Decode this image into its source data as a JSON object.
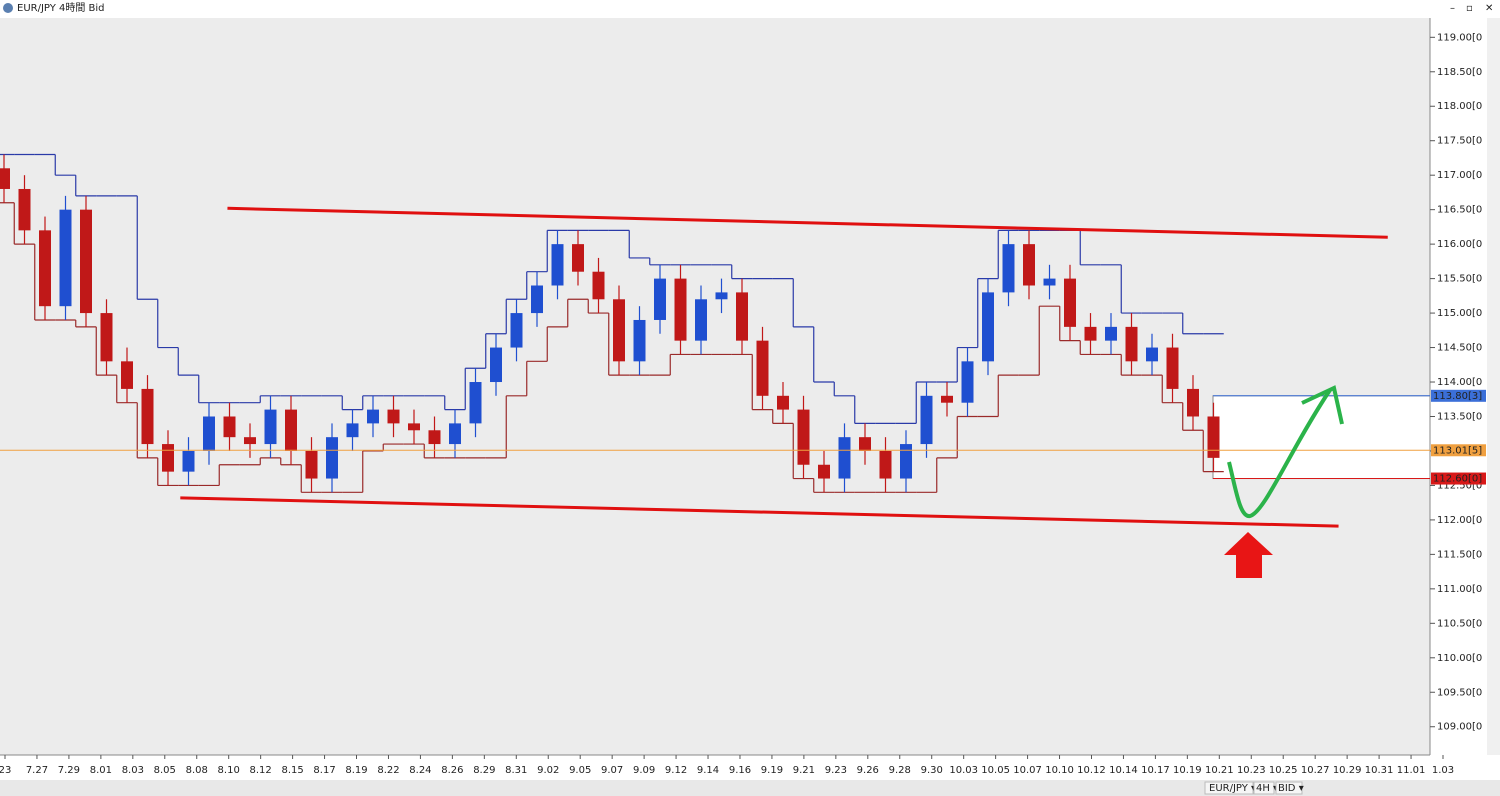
{
  "window": {
    "title": "EUR/JPY 4時間 Bid",
    "toolbar": [
      "EUR/JPY ▾",
      "4H ▾",
      "BID ▾"
    ]
  },
  "chart_data": {
    "type": "candlestick",
    "categories": [
      "23",
      "7.27",
      "7.29",
      "8.01",
      "8.03",
      "8.05",
      "8.08",
      "8.10",
      "8.12",
      "8.15",
      "8.17",
      "8.19",
      "8.22",
      "8.24",
      "8.26",
      "8.29",
      "8.31",
      "9.02",
      "9.05",
      "9.07",
      "9.09",
      "9.12",
      "9.14",
      "9.16",
      "9.19",
      "9.21",
      "9.23",
      "9.26",
      "9.28",
      "9.30",
      "10.03",
      "10.05",
      "10.07",
      "10.10",
      "10.12",
      "10.14",
      "10.17",
      "10.19",
      "10.21",
      "10.23",
      "10.25",
      "10.27",
      "10.29",
      "10.31",
      "11.01",
      "1.03"
    ],
    "up_color": "#1f4fd0",
    "down_color": "#c01818",
    "candles": [
      [
        117.1,
        117.3,
        116.6,
        116.8
      ],
      [
        116.8,
        117.0,
        116.0,
        116.2
      ],
      [
        116.2,
        116.4,
        114.9,
        115.1
      ],
      [
        115.1,
        116.7,
        114.9,
        116.5
      ],
      [
        116.5,
        116.7,
        114.8,
        115.0
      ],
      [
        115.0,
        115.2,
        114.1,
        114.3
      ],
      [
        114.3,
        114.5,
        113.7,
        113.9
      ],
      [
        113.9,
        114.1,
        112.9,
        113.1
      ],
      [
        113.1,
        113.3,
        112.5,
        112.7
      ],
      [
        112.7,
        113.2,
        112.5,
        113.0
      ],
      [
        113.0,
        113.7,
        112.8,
        113.5
      ],
      [
        113.5,
        113.7,
        113.0,
        113.2
      ],
      [
        113.2,
        113.4,
        112.9,
        113.1
      ],
      [
        113.1,
        113.8,
        112.9,
        113.6
      ],
      [
        113.6,
        113.8,
        112.8,
        113.0
      ],
      [
        113.0,
        113.2,
        112.4,
        112.6
      ],
      [
        112.6,
        113.4,
        112.4,
        113.2
      ],
      [
        113.2,
        113.6,
        113.0,
        113.4
      ],
      [
        113.4,
        113.8,
        113.2,
        113.6
      ],
      [
        113.6,
        113.8,
        113.2,
        113.4
      ],
      [
        113.4,
        113.6,
        113.1,
        113.3
      ],
      [
        113.3,
        113.5,
        112.9,
        113.1
      ],
      [
        113.1,
        113.6,
        112.9,
        113.4
      ],
      [
        113.4,
        114.2,
        113.2,
        114.0
      ],
      [
        114.0,
        114.7,
        113.8,
        114.5
      ],
      [
        114.5,
        115.2,
        114.3,
        115.0
      ],
      [
        115.0,
        115.6,
        114.8,
        115.4
      ],
      [
        115.4,
        116.2,
        115.2,
        116.0
      ],
      [
        116.0,
        116.2,
        115.4,
        115.6
      ],
      [
        115.6,
        115.8,
        115.0,
        115.2
      ],
      [
        115.2,
        115.4,
        114.1,
        114.3
      ],
      [
        114.3,
        115.1,
        114.1,
        114.9
      ],
      [
        114.9,
        115.7,
        114.7,
        115.5
      ],
      [
        115.5,
        115.7,
        114.4,
        114.6
      ],
      [
        114.6,
        115.4,
        114.4,
        115.2
      ],
      [
        115.2,
        115.5,
        115.0,
        115.3
      ],
      [
        115.3,
        115.5,
        114.4,
        114.6
      ],
      [
        114.6,
        114.8,
        113.6,
        113.8
      ],
      [
        113.8,
        114.0,
        113.4,
        113.6
      ],
      [
        113.6,
        113.8,
        112.6,
        112.8
      ],
      [
        112.8,
        113.0,
        112.4,
        112.6
      ],
      [
        112.6,
        113.4,
        112.4,
        113.2
      ],
      [
        113.2,
        113.4,
        112.8,
        113.0
      ],
      [
        113.0,
        113.2,
        112.4,
        112.6
      ],
      [
        112.6,
        113.3,
        112.4,
        113.1
      ],
      [
        113.1,
        114.0,
        112.9,
        113.8
      ],
      [
        113.8,
        114.0,
        113.5,
        113.7
      ],
      [
        113.7,
        114.5,
        113.5,
        114.3
      ],
      [
        114.3,
        115.5,
        114.1,
        115.3
      ],
      [
        115.3,
        116.2,
        115.1,
        116.0
      ],
      [
        116.0,
        116.2,
        115.2,
        115.4
      ],
      [
        115.4,
        115.7,
        115.2,
        115.5
      ],
      [
        115.5,
        115.7,
        114.6,
        114.8
      ],
      [
        114.8,
        115.0,
        114.4,
        114.6
      ],
      [
        114.6,
        115.0,
        114.4,
        114.8
      ],
      [
        114.8,
        115.0,
        114.1,
        114.3
      ],
      [
        114.3,
        114.7,
        114.1,
        114.5
      ],
      [
        114.5,
        114.7,
        113.7,
        113.9
      ],
      [
        113.9,
        114.1,
        113.3,
        113.5
      ],
      [
        113.5,
        113.7,
        112.7,
        112.9
      ]
    ],
    "channel": {
      "upper_color": "#2a3aa8",
      "lower_color": "#9a2a2a",
      "upper": [
        117.3,
        117.3,
        117.3,
        117.0,
        116.7,
        116.7,
        116.7,
        115.2,
        114.5,
        114.1,
        113.7,
        113.7,
        113.7,
        113.8,
        113.8,
        113.8,
        113.8,
        113.6,
        113.8,
        113.8,
        113.8,
        113.8,
        113.6,
        114.2,
        114.7,
        115.2,
        115.6,
        116.2,
        116.2,
        116.2,
        116.2,
        115.8,
        115.7,
        115.7,
        115.7,
        115.7,
        115.5,
        115.5,
        115.5,
        114.8,
        114.0,
        113.8,
        113.4,
        113.4,
        113.4,
        114.0,
        114.0,
        114.5,
        115.5,
        116.2,
        116.2,
        116.2,
        116.2,
        115.7,
        115.7,
        115.0,
        115.0,
        115.0,
        114.7,
        114.7
      ],
      "lower": [
        116.6,
        116.0,
        114.9,
        114.9,
        114.8,
        114.1,
        113.7,
        112.9,
        112.5,
        112.5,
        112.5,
        112.8,
        112.8,
        112.9,
        112.8,
        112.4,
        112.4,
        112.4,
        113.0,
        113.1,
        113.1,
        112.9,
        112.9,
        112.9,
        112.9,
        113.8,
        114.3,
        114.8,
        115.2,
        115.0,
        114.1,
        114.1,
        114.1,
        114.4,
        114.4,
        114.4,
        114.4,
        113.6,
        113.4,
        112.6,
        112.4,
        112.4,
        112.4,
        112.4,
        112.4,
        112.4,
        112.9,
        113.5,
        113.5,
        114.1,
        114.1,
        115.1,
        114.6,
        114.4,
        114.4,
        114.1,
        114.1,
        113.7,
        113.3,
        112.7
      ]
    },
    "trendlines": [
      {
        "x": [
          10.9,
          67.5
        ],
        "y": [
          116.52,
          116.1
        ],
        "color": "#e01010"
      },
      {
        "x": [
          8.6,
          65.1
        ],
        "y": [
          112.32,
          111.91
        ],
        "color": "#e01010"
      }
    ],
    "price_lines": [
      {
        "value": 113.8,
        "label": "113.80[3]",
        "color": "#3b6fd8"
      },
      {
        "value": 113.01,
        "label": "113.01[5]",
        "color": "#f0a040"
      },
      {
        "value": 112.6,
        "label": "112.60[0]",
        "color": "#d81818"
      }
    ],
    "ylim": [
      108.59,
      119.28
    ],
    "yticks": [
      {
        "value": 109,
        "label": "109.00[0"
      },
      {
        "value": 109.5,
        "label": "109.50[0"
      },
      {
        "value": 110,
        "label": "110.00[0"
      },
      {
        "value": 110.5,
        "label": "110.50[0"
      },
      {
        "value": 111,
        "label": "111.00[0"
      },
      {
        "value": 111.5,
        "label": "111.50[0"
      },
      {
        "value": 112,
        "label": "112.00[0"
      },
      {
        "value": 112.5,
        "label": "112.50[0"
      },
      {
        "value": 113,
        "label": "113.00[0"
      },
      {
        "value": 113.5,
        "label": "113.50[0"
      },
      {
        "value": 114,
        "label": "114.00[0"
      },
      {
        "value": 114.5,
        "label": "114.50[0"
      },
      {
        "value": 115,
        "label": "115.00[0"
      },
      {
        "value": 115.5,
        "label": "115.50[0"
      },
      {
        "value": 116,
        "label": "116.00[0"
      },
      {
        "value": 116.5,
        "label": "116.50[0"
      },
      {
        "value": 117,
        "label": "117.00[0"
      },
      {
        "value": 117.5,
        "label": "117.50[0"
      },
      {
        "value": 118,
        "label": "118.00[0"
      },
      {
        "value": 118.5,
        "label": "118.50[0"
      },
      {
        "value": 119,
        "label": "119.00[0"
      }
    ]
  }
}
